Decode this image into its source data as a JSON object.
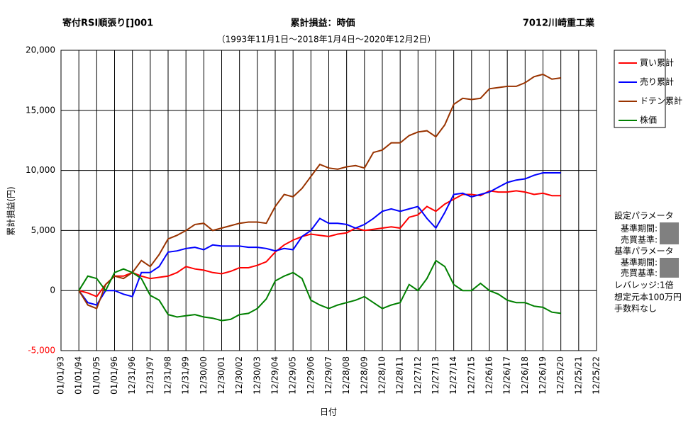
{
  "chart_data": {
    "type": "line",
    "title": "累計損益：時価",
    "title_left": "寄付RSI順張り[]001",
    "title_right": "7012川崎重工業",
    "subtitle": "（1993年11月1日～2018年1月4日～2020年12月2日）",
    "x_label": "日付",
    "y_label": "累計損益(円)",
    "ylim": [
      -5000,
      20000
    ],
    "yticks": [
      {
        "value": -5000,
        "label": "-5,000"
      },
      0,
      {
        "value": 5000,
        "label": "5,000"
      },
      {
        "value": 10000,
        "label": "10,000"
      },
      {
        "value": 15000,
        "label": "15,000"
      },
      {
        "value": 20000,
        "label": "20,000"
      }
    ],
    "negative_tick_color": "#ff0000",
    "grid": true,
    "legend": "right",
    "categories": [
      "01/01/93",
      null,
      "01/01/94",
      null,
      "01/01/95",
      null,
      "01/01/96",
      null,
      "12/31/96",
      null,
      "12/31/97",
      null,
      "12/31/98",
      null,
      "12/31/99",
      null,
      "12/30/00",
      null,
      "12/30/01",
      null,
      "12/30/02",
      null,
      "12/30/03",
      null,
      "12/29/04",
      null,
      "12/29/05",
      null,
      "12/29/06",
      null,
      "12/29/07",
      null,
      "12/28/08",
      null,
      "12/28/09",
      null,
      "12/28/10",
      null,
      "12/28/11",
      null,
      "12/27/12",
      null,
      "12/27/13",
      null,
      "12/27/14",
      null,
      "12/27/15",
      null,
      "12/26/16",
      null,
      "12/26/17",
      null,
      "12/26/18",
      null,
      "12/26/19",
      null,
      "12/25/20",
      null,
      "12/25/21",
      null,
      "12/25/22"
    ],
    "series": [
      {
        "name": "買い累計",
        "color": "#ff0000",
        "values": [
          null,
          null,
          0,
          -200,
          -500,
          500,
          1200,
          1200,
          1500,
          1200,
          1000,
          1100,
          1200,
          1500,
          2000,
          1800,
          1700,
          1500,
          1400,
          1600,
          1900,
          1900,
          2100,
          2400,
          3200,
          3800,
          4200,
          4500,
          4700,
          4600,
          4500,
          4700,
          4800,
          5200,
          5000,
          5100,
          5200,
          5300,
          5200,
          6100,
          6300,
          7000,
          6600,
          7200,
          7600,
          8000,
          8000,
          7900,
          8300,
          8200,
          8200,
          8300,
          8200,
          8000,
          8100,
          7900,
          7900,
          null,
          null,
          null,
          null
        ]
      },
      {
        "name": "売り累計",
        "color": "#0000ff",
        "values": [
          null,
          null,
          0,
          -1000,
          -1200,
          0,
          0,
          -300,
          -500,
          1500,
          1500,
          2000,
          3200,
          3300,
          3500,
          3600,
          3400,
          3800,
          3700,
          3700,
          3700,
          3600,
          3600,
          3500,
          3300,
          3500,
          3400,
          4500,
          5000,
          6000,
          5600,
          5600,
          5500,
          5200,
          5500,
          6000,
          6600,
          6800,
          6600,
          6800,
          7000,
          6000,
          5200,
          6500,
          8000,
          8100,
          7800,
          8000,
          8200,
          8600,
          9000,
          9200,
          9300,
          9600,
          9800,
          9800,
          9800,
          null,
          null,
          null,
          null
        ]
      },
      {
        "name": "ドテン累計",
        "color": "#993300",
        "values": [
          null,
          null,
          0,
          -1200,
          -1500,
          500,
          1200,
          1000,
          1500,
          2500,
          2000,
          3000,
          4300,
          4600,
          5000,
          5500,
          5600,
          5000,
          5200,
          5400,
          5600,
          5700,
          5700,
          5600,
          7000,
          8000,
          7800,
          8500,
          9500,
          10500,
          10200,
          10100,
          10300,
          10400,
          10200,
          11500,
          11700,
          12300,
          12300,
          12900,
          13200,
          13300,
          12800,
          13800,
          15500,
          16000,
          15900,
          16000,
          16800,
          16900,
          17000,
          17000,
          17300,
          17800,
          18000,
          17600,
          17700,
          null,
          null,
          null,
          null
        ]
      },
      {
        "name": "株価",
        "color": "#008000",
        "values": [
          null,
          null,
          0,
          1200,
          1000,
          0,
          1500,
          1800,
          1500,
          1000,
          -400,
          -800,
          -2000,
          -2200,
          -2100,
          -2000,
          -2200,
          -2300,
          -2500,
          -2400,
          -2000,
          -1900,
          -1500,
          -700,
          800,
          1200,
          1500,
          1000,
          -800,
          -1200,
          -1500,
          -1200,
          -1000,
          -800,
          -500,
          -1000,
          -1500,
          -1200,
          -1000,
          500,
          0,
          1000,
          2500,
          2000,
          500,
          0,
          0,
          600,
          0,
          -300,
          -800,
          -1000,
          -1000,
          -1300,
          -1400,
          -1800,
          -1900,
          null,
          null,
          null,
          null
        ]
      }
    ]
  },
  "panel": [
    "設定パラメータ",
    "基準期間:",
    "売買基準:",
    "基準パラメータ",
    "基準期間:",
    "売買基準:",
    "レバレッジ:1倍",
    "想定元本100万円",
    "手数料なし"
  ]
}
